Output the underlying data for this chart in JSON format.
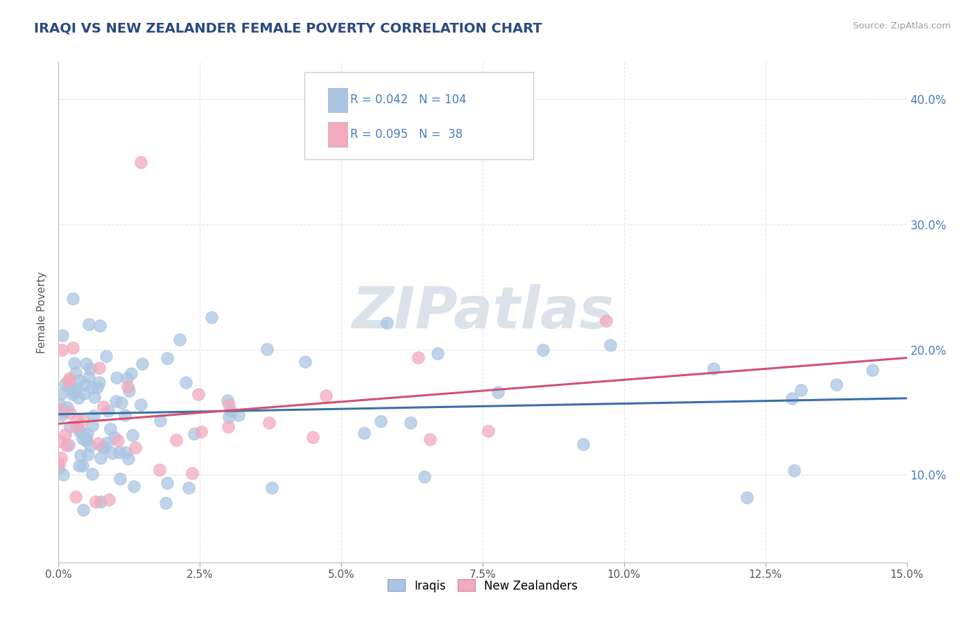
{
  "title": "IRAQI VS NEW ZEALANDER FEMALE POVERTY CORRELATION CHART",
  "source": "Source: ZipAtlas.com",
  "ylabel": "Female Poverty",
  "xlim": [
    0.0,
    15.0
  ],
  "ylim": [
    3.0,
    43.0
  ],
  "yticks": [
    10.0,
    20.0,
    30.0,
    40.0
  ],
  "xticks": [
    0.0,
    2.5,
    5.0,
    7.5,
    10.0,
    12.5,
    15.0
  ],
  "iraqi_R": 0.042,
  "iraqi_N": 104,
  "nz_R": 0.095,
  "nz_N": 38,
  "iraqi_color": "#aac5e2",
  "nz_color": "#f2aabe",
  "iraqi_line_color": "#3a6faa",
  "nz_line_color": "#d45070",
  "background_color": "#ffffff",
  "title_color": "#2a4a80",
  "axis_label_color": "#555555",
  "tick_color": "#4a7fc0",
  "legend_text_color": "#4a7fc0",
  "watermark": "ZIPatlas",
  "watermark_color": "#d8dfe8",
  "grid_color": "#cccccc",
  "legend_box_color": "#e8ecf2",
  "legend_box_edge": "#bbbbcc"
}
